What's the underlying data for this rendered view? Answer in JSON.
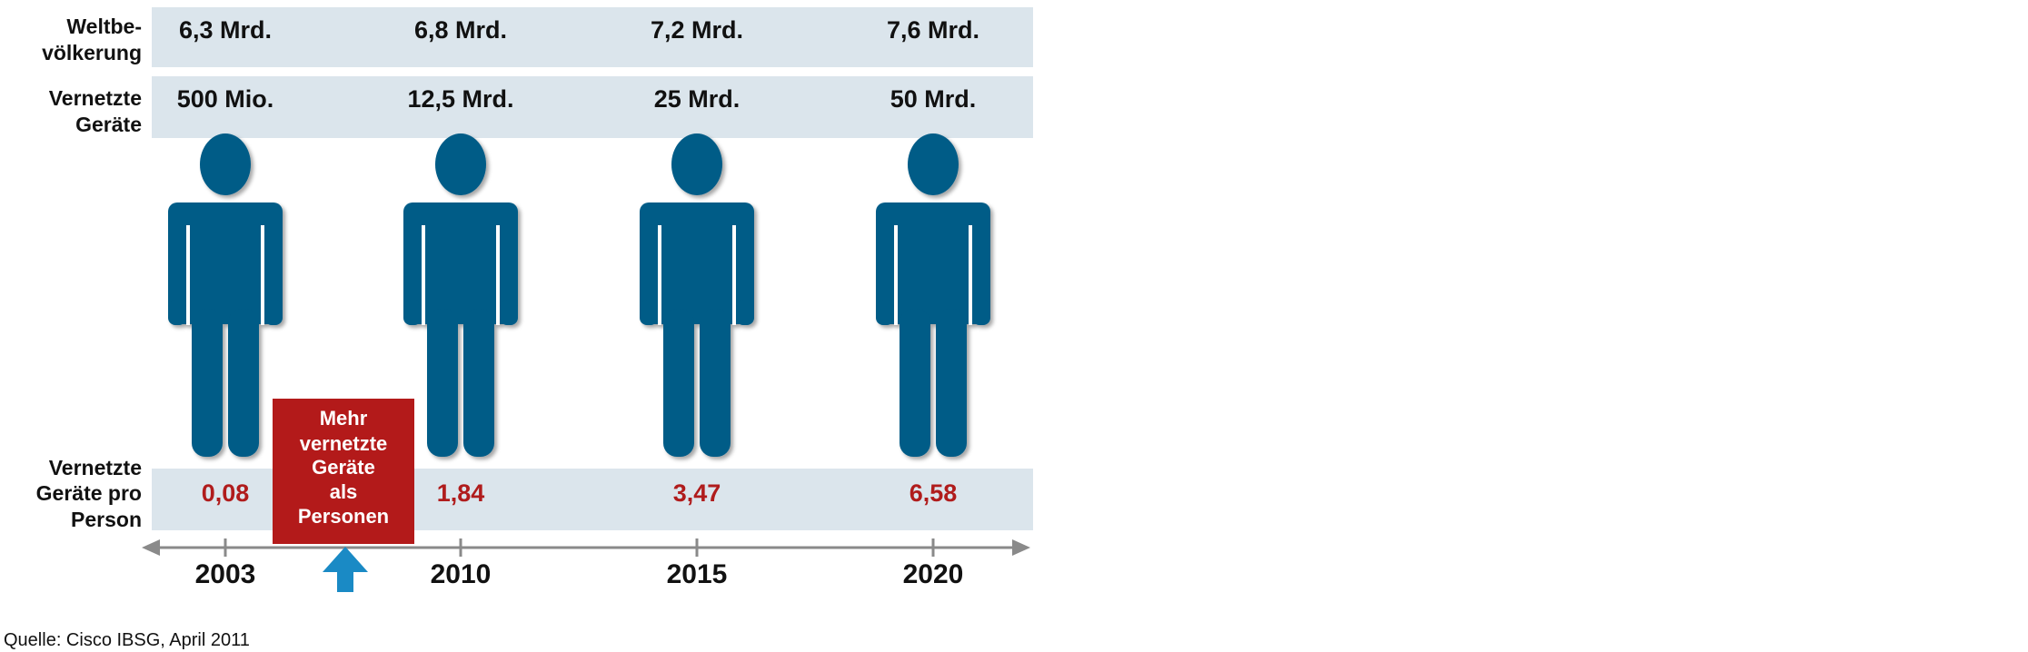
{
  "chart_data": {
    "type": "table",
    "categories": [
      "2003",
      "2010",
      "2015",
      "2020"
    ],
    "rows": [
      {
        "label_lines": [
          "Weltbe-",
          "völkerung"
        ],
        "values": [
          "6,3 Mrd.",
          "6,8 Mrd.",
          "7,2 Mrd.",
          "7,6 Mrd."
        ]
      },
      {
        "label_lines": [
          "Vernetzte",
          "Geräte"
        ],
        "values": [
          "500 Mio.",
          "12,5 Mrd.",
          "25 Mrd.",
          "50 Mrd."
        ]
      },
      {
        "label_lines": [
          "Vernetzte",
          "Geräte pro",
          "Person"
        ],
        "values": [
          "0,08",
          "1,84",
          "3,47",
          "6,58"
        ]
      }
    ],
    "callout": {
      "lines": [
        "Mehr",
        "vernetzte",
        "Geräte",
        "als",
        "Personen"
      ]
    },
    "colors": {
      "band": "#dbe5ec",
      "figure": "#005b87",
      "ratio_text": "#b01c1c",
      "callout_bg": "#b31a1a",
      "arrow": "#1a8ac5",
      "axis": "#8a8a8a"
    }
  },
  "source": "Quelle: Cisco IBSG, April 2011"
}
